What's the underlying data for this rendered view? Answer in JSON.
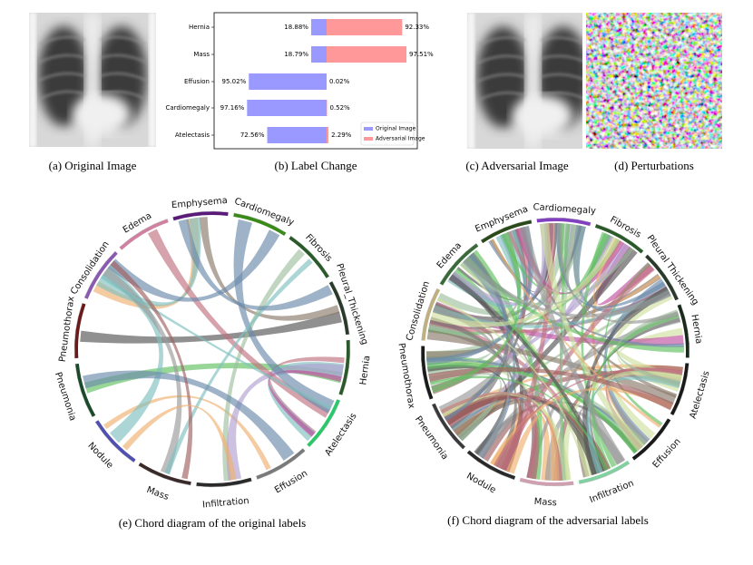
{
  "figure": {
    "captions": [
      "(a) Original Image",
      "(b) Label Change",
      "(c) Adversarial Image",
      "(d) Perturbations",
      "(e) Chord diagram of the original labels",
      "(f) Chord diagram of the adversarial labels"
    ]
  },
  "chart_data": {
    "type": "bar",
    "categories": [
      "Hernia",
      "Mass",
      "Effusion",
      "Cardiomegaly",
      "Atelectasis"
    ],
    "series": [
      {
        "name": "Original Image",
        "color": "#9999ff",
        "values": [
          18.88,
          18.79,
          95.02,
          97.16,
          72.56
        ],
        "value_labels": [
          "18.88%",
          "18.79%",
          "95.02%",
          "97.16%",
          "72.56%"
        ]
      },
      {
        "name": "Adversarial Image",
        "color": "#ff9999",
        "values": [
          92.33,
          97.51,
          0.02,
          0.52,
          2.29
        ],
        "value_labels": [
          "92.33%",
          "97.51%",
          "0.02%",
          "0.52%",
          "2.29%"
        ]
      }
    ],
    "legend": "lower right"
  },
  "chord_original": {
    "labels": [
      "Emphysema",
      "Cardiomegaly",
      "Fibrosis",
      "Pleural_Thickening",
      "Hernia",
      "Atelectasis",
      "Effusion",
      "Infiltration",
      "Mass",
      "Nodule",
      "Pneumonia",
      "Pneumothorax",
      "Consolidation",
      "Edema"
    ],
    "colors": [
      "#5a1a7a",
      "#3a8a1a",
      "#2a5a2a",
      "#2a3a2a",
      "#2a5a2a",
      "#2ac86a",
      "#7a7a7a",
      "#2a2a2a",
      "#3a2a2a",
      "#5050b0",
      "#1a4a2a",
      "#6a1a1a",
      "#8a5ab0",
      "#d080a0"
    ]
  },
  "chord_adversarial": {
    "labels": [
      "Emphysema",
      "Cardiomegaly",
      "Fibrosis",
      "Pleural Thickening",
      "Hernia",
      "Atelectasis",
      "Effusion",
      "Infiltration",
      "Mass",
      "Nodule",
      "Pneumonia",
      "Pneumothorax",
      "Consolidation",
      "Edema"
    ],
    "colors": [
      "#2a4a1a",
      "#8040c0",
      "#2a5a2a",
      "#2a3a2a",
      "#1a2a1a",
      "#1a1a1a",
      "#1a1a1a",
      "#80d0a0",
      "#d0a0b0",
      "#2a2a2a",
      "#3a3a3a",
      "#1a1a1a",
      "#c0b080",
      "#3a6a3a"
    ]
  }
}
